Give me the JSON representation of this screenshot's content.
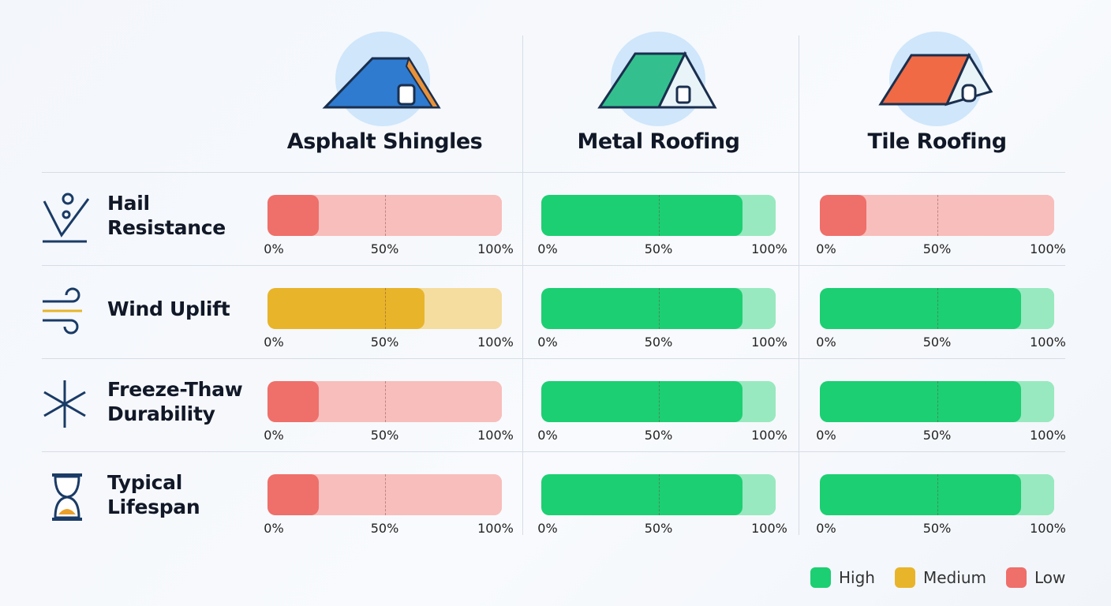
{
  "columns": [
    "Asphalt Shingles",
    "Metal Roofing",
    "Tile Roofing"
  ],
  "rows": [
    {
      "label": "Hail Resistance",
      "values": [
        22,
        86,
        20
      ],
      "ratings": [
        "Low",
        "High",
        "Low"
      ]
    },
    {
      "label": "Wind Uplift",
      "values": [
        67,
        86,
        86
      ],
      "ratings": [
        "Medium",
        "High",
        "High"
      ]
    },
    {
      "label": "Freeze-Thaw Durability",
      "values": [
        22,
        86,
        86
      ],
      "ratings": [
        "Low",
        "High",
        "High"
      ]
    },
    {
      "label": "Typical Lifespan",
      "values": [
        22,
        86,
        86
      ],
      "ratings": [
        "Low",
        "High",
        "High"
      ]
    }
  ],
  "scale": {
    "lim": [
      0,
      100
    ],
    "ticks": [
      {
        "value": 0,
        "label": "0%"
      },
      {
        "value": 50,
        "label": "50%"
      },
      {
        "value": 100,
        "label": "100%"
      }
    ]
  },
  "legend": [
    {
      "name": "High",
      "color": "#1ccf72"
    },
    {
      "name": "Medium",
      "color": "#e8b42a"
    },
    {
      "name": "Low",
      "color": "#ef6f6a"
    }
  ]
}
